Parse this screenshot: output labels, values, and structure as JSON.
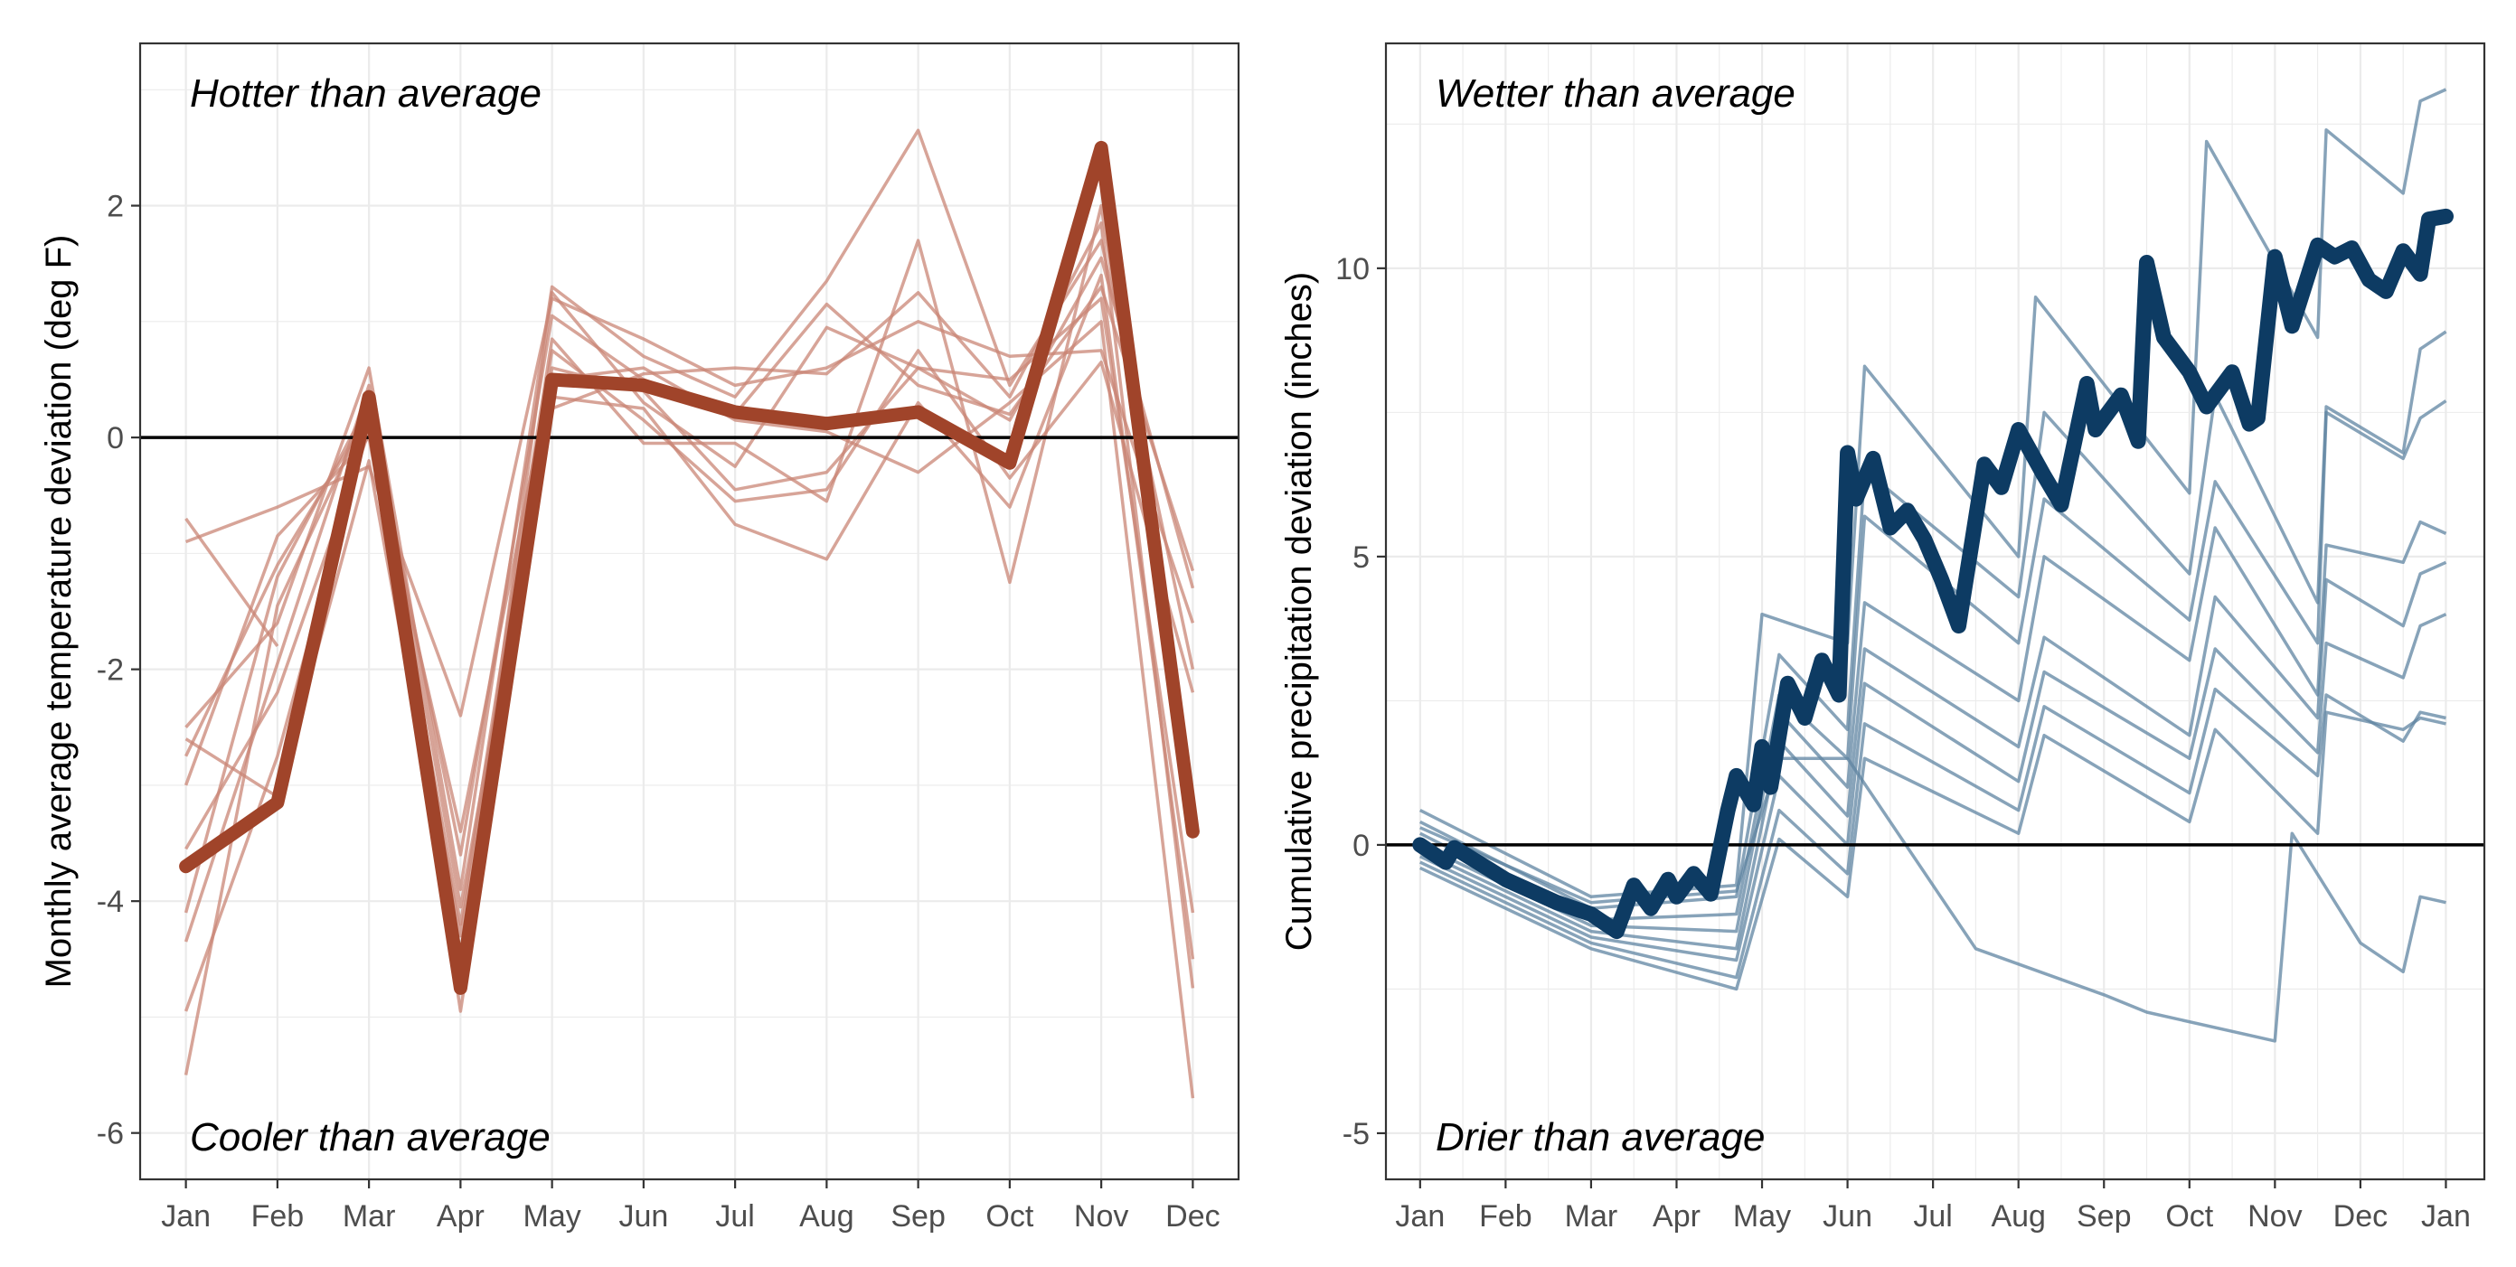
{
  "colors": {
    "temperature_accent": "#a0442a",
    "temperature_faint": "#c98676",
    "precipitation_accent": "#0d3b63",
    "precipitation_faint": "#5f84a2",
    "zero_line": "#000000",
    "grid": "#ebebeb",
    "panel_border": "#333333"
  },
  "chart_data": [
    {
      "type": "line",
      "title": "",
      "xlabel": "",
      "ylabel": "Monthly average temperature deviation (deg F)",
      "categories": [
        "Jan",
        "Feb",
        "Mar",
        "Apr",
        "May",
        "Jun",
        "Jul",
        "Aug",
        "Sep",
        "Oct",
        "Nov",
        "Dec"
      ],
      "ylim": [
        -6.4,
        3.4
      ],
      "yticks": [
        -6,
        -4,
        -2,
        0,
        2
      ],
      "yticklabels": [
        "-6",
        "-4",
        "-2",
        "0",
        "2"
      ],
      "grid": true,
      "reference_line": 0,
      "annotations": {
        "top": "Hotter than average",
        "bottom": "Cooler than average"
      },
      "highlight": {
        "values": [
          -3.7,
          -3.15,
          0.35,
          -4.75,
          0.5,
          0.45,
          0.22,
          0.12,
          0.22,
          -0.22,
          2.5,
          -3.4
        ]
      },
      "background_series": [
        {
          "values": [
            -0.7,
            -1.8,
            null,
            null,
            null,
            null,
            null,
            null,
            null,
            null,
            null,
            null
          ]
        },
        {
          "values": [
            -0.9,
            -0.6,
            -0.25,
            -2.4,
            1.2,
            0.85,
            0.45,
            0.6,
            1.0,
            0.7,
            0.75,
            -1.6
          ]
        },
        {
          "values": [
            -2.5,
            -1.6,
            0.6,
            -3.9,
            1.3,
            0.7,
            0.35,
            1.35,
            2.65,
            0.45,
            1.7,
            -2.0
          ]
        },
        {
          "values": [
            -2.75,
            -1.1,
            0.2,
            -4.2,
            0.85,
            -0.05,
            -0.05,
            -0.55,
            1.7,
            -1.25,
            2.0,
            -3.2
          ]
        },
        {
          "values": [
            -3.55,
            -2.2,
            0.05,
            -3.4,
            0.6,
            0.4,
            -0.45,
            -0.3,
            0.6,
            0.5,
            1.2,
            -4.1
          ]
        },
        {
          "values": [
            -4.35,
            -1.95,
            0.45,
            -4.05,
            0.35,
            0.25,
            -0.75,
            -1.05,
            0.3,
            -0.6,
            1.4,
            -4.5
          ]
        },
        {
          "values": [
            -4.95,
            -2.75,
            0.15,
            -4.45,
            0.5,
            0.6,
            0.15,
            0.05,
            -0.3,
            0.3,
            1.0,
            -5.7
          ]
        },
        {
          "values": [
            -5.5,
            -1.45,
            0.25,
            -4.95,
            0.25,
            0.55,
            0.6,
            0.55,
            1.25,
            0.35,
            1.85,
            -4.75
          ]
        },
        {
          "values": [
            -2.6,
            -3.1,
            -0.2,
            -4.55,
            1.25,
            0.3,
            -0.25,
            0.95,
            0.6,
            0.15,
            1.55,
            -1.3
          ]
        },
        {
          "values": [
            -3.0,
            -0.85,
            0.0,
            -4.3,
            0.75,
            0.15,
            -0.55,
            -0.45,
            0.75,
            -0.35,
            0.65,
            -2.2
          ]
        },
        {
          "values": [
            -4.1,
            -1.2,
            0.3,
            -3.6,
            1.05,
            0.5,
            0.2,
            1.15,
            0.45,
            0.2,
            1.3,
            -1.15
          ]
        }
      ]
    },
    {
      "type": "line",
      "title": "",
      "xlabel": "",
      "ylabel": "Cumulative precipitation deviation (inches)",
      "categories": [
        "Jan",
        "Feb",
        "Mar",
        "Apr",
        "May",
        "Jun",
        "Jul",
        "Aug",
        "Sep",
        "Oct",
        "Nov",
        "Dec",
        "Jan"
      ],
      "xlim_month_positions": [
        0,
        12
      ],
      "ylim": [
        -5.8,
        13.9
      ],
      "yticks": [
        -5,
        0,
        5,
        10
      ],
      "yticklabels": [
        "-5",
        "0",
        "5",
        "10"
      ],
      "grid": true,
      "reference_line": 0,
      "annotations": {
        "top": "Wetter than average",
        "bottom": "Drier than average"
      },
      "highlight": {
        "x": [
          0,
          0.3,
          0.4,
          1.0,
          1.6,
          2.0,
          2.3,
          2.5,
          2.7,
          2.9,
          3.0,
          3.2,
          3.4,
          3.6,
          3.7,
          3.9,
          4.0,
          4.1,
          4.3,
          4.5,
          4.7,
          4.9,
          5.0,
          5.1,
          5.3,
          5.5,
          5.7,
          5.9,
          6.1,
          6.3,
          6.6,
          6.8,
          7.0,
          7.3,
          7.5,
          7.8,
          7.9,
          8.2,
          8.4,
          8.5,
          8.7,
          9.0,
          9.2,
          9.5,
          9.7,
          9.8,
          10.0,
          10.2,
          10.5,
          10.7,
          10.9,
          11.1,
          11.3,
          11.5,
          11.7,
          11.8,
          12.0
        ],
        "values": [
          0,
          -0.3,
          -0.05,
          -0.6,
          -1.0,
          -1.2,
          -1.5,
          -0.7,
          -1.1,
          -0.6,
          -0.9,
          -0.5,
          -0.85,
          0.6,
          1.2,
          0.7,
          1.7,
          1.0,
          2.8,
          2.2,
          3.2,
          2.6,
          6.8,
          6.0,
          6.7,
          5.5,
          5.8,
          5.3,
          4.6,
          3.8,
          6.6,
          6.2,
          7.2,
          6.4,
          5.9,
          8.0,
          7.2,
          7.8,
          7.0,
          10.1,
          8.8,
          8.2,
          7.6,
          8.2,
          7.3,
          7.4,
          10.2,
          9.0,
          10.4,
          10.2,
          10.35,
          9.8,
          9.6,
          10.3,
          9.9,
          10.85,
          10.9
        ]
      },
      "background_series": [
        {
          "x": [
            0,
            2.0,
            3.7,
            4.0,
            5.0,
            5.2,
            7.0,
            7.2,
            9.0,
            9.2,
            10.5,
            10.6,
            11.5,
            11.7,
            12.0
          ],
          "values": [
            0.6,
            -0.9,
            -0.7,
            4.0,
            3.5,
            8.3,
            5.0,
            9.5,
            6.1,
            12.2,
            8.8,
            12.4,
            11.3,
            12.9,
            13.1
          ]
        },
        {
          "x": [
            0,
            2.0,
            3.7,
            4.2,
            5.0,
            5.2,
            7.0,
            7.3,
            9.0,
            9.3,
            10.5,
            10.6,
            11.5,
            11.7,
            12.0
          ],
          "values": [
            0.4,
            -1.1,
            -0.9,
            3.3,
            2.0,
            6.5,
            4.3,
            7.5,
            4.7,
            7.8,
            4.2,
            7.6,
            6.8,
            8.6,
            8.9
          ]
        },
        {
          "x": [
            0,
            2.0,
            3.7,
            4.2,
            5.0,
            5.2,
            7.0,
            7.3,
            9.0,
            9.3,
            10.5,
            10.6,
            11.5,
            11.7,
            12.0
          ],
          "values": [
            0.2,
            -1.3,
            -1.2,
            2.6,
            1.5,
            5.7,
            3.5,
            6.0,
            3.9,
            6.3,
            3.5,
            7.5,
            6.7,
            7.4,
            7.7
          ]
        },
        {
          "x": [
            0,
            2.0,
            3.7,
            4.2,
            5.0,
            5.2,
            7.0,
            7.3,
            9.0,
            9.3,
            10.5,
            10.6,
            11.5,
            11.7,
            12.0
          ],
          "values": [
            0.0,
            -1.4,
            -1.5,
            2.3,
            1.0,
            4.2,
            2.5,
            5.0,
            3.2,
            5.5,
            2.6,
            5.2,
            4.9,
            5.6,
            5.4
          ]
        },
        {
          "x": [
            0,
            2.0,
            3.7,
            4.2,
            5.0,
            5.2,
            7.0,
            7.3,
            9.0,
            9.3,
            10.5,
            10.6,
            11.5,
            11.7,
            12.0
          ],
          "values": [
            -0.1,
            -1.5,
            -1.8,
            1.8,
            0.5,
            3.4,
            1.7,
            3.6,
            1.9,
            4.3,
            2.2,
            4.6,
            3.8,
            4.7,
            4.9
          ]
        },
        {
          "x": [
            0,
            2.0,
            3.7,
            4.2,
            5.0,
            5.2,
            7.0,
            7.3,
            9.0,
            9.3,
            10.5,
            10.6,
            11.5,
            11.7,
            12.0
          ],
          "values": [
            -0.2,
            -1.6,
            -2.0,
            1.2,
            0.0,
            2.8,
            1.1,
            3.0,
            1.5,
            3.4,
            1.6,
            3.5,
            2.9,
            3.8,
            4.0
          ]
        },
        {
          "x": [
            0,
            2.0,
            3.7,
            4.2,
            5.0,
            5.2,
            7.0,
            7.3,
            9.0,
            9.3,
            10.5,
            10.6,
            11.5,
            11.7,
            12.0
          ],
          "values": [
            -0.3,
            -1.7,
            -2.3,
            0.6,
            -0.5,
            2.1,
            0.6,
            2.4,
            0.9,
            2.7,
            1.2,
            2.6,
            1.8,
            2.3,
            2.2
          ]
        },
        {
          "x": [
            0,
            2.0,
            3.7,
            4.2,
            5.0,
            5.2,
            7.0,
            7.3,
            9.0,
            9.3,
            10.5,
            10.6,
            11.5,
            11.7,
            12.0
          ],
          "values": [
            -0.4,
            -1.8,
            -2.5,
            0.1,
            -0.9,
            1.5,
            0.2,
            1.9,
            0.4,
            2.0,
            0.2,
            2.3,
            2.0,
            2.2,
            2.1
          ]
        },
        {
          "x": [
            0,
            2.0,
            3.7,
            4.2,
            5.0,
            6.5,
            8.0,
            8.5,
            10.0,
            10.2,
            11.0,
            11.5,
            11.7,
            12.0
          ],
          "values": [
            0.3,
            -1.0,
            -0.8,
            1.5,
            1.5,
            -1.8,
            -2.6,
            -2.9,
            -3.4,
            0.2,
            -1.7,
            -2.2,
            -0.9,
            -1.0
          ]
        }
      ]
    }
  ]
}
